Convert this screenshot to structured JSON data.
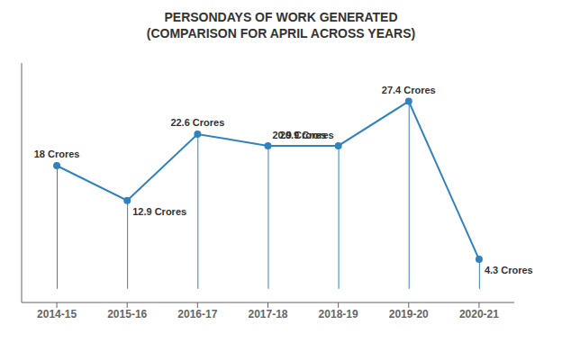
{
  "chart_data": {
    "type": "line",
    "title": "PERSONDAYS OF WORK GENERATED",
    "subtitle": "(COMPARISON FOR APRIL ACROSS YEARS)",
    "categories": [
      "2014-15",
      "2015-16",
      "2016-17",
      "2017-18",
      "2018-19",
      "2019-20",
      "2020-21"
    ],
    "values": [
      18.0,
      12.9,
      22.6,
      20.9,
      20.9,
      27.4,
      4.3
    ],
    "value_labels": [
      "18 Crores",
      "12.9 Crores",
      "22.6 Crores",
      "20.9 Crores",
      "20.9 Crores",
      "27.4 Crores",
      "4.3 Crores"
    ],
    "data_labels": true,
    "ylim": [
      -2,
      33
    ],
    "tick_labels": "x",
    "grid": false,
    "color": "#3182bd",
    "marker": "circle",
    "line_style": "solid"
  }
}
